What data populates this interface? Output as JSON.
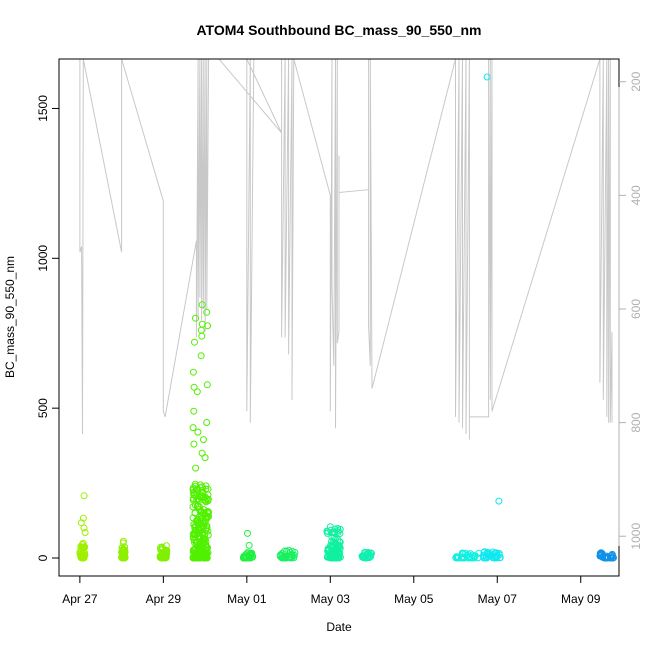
{
  "chart_data": {
    "type": "scatter",
    "title": "ATOM4 Southbound BC_mass_90_550_nm",
    "xlabel": "Date",
    "ylabel": "BC_mass_90_550_nm",
    "x_ticks": [
      "Apr 27",
      "Apr 29",
      "May 01",
      "May 03",
      "May 05",
      "May 07",
      "May 09"
    ],
    "x_tick_dates": [
      "2017-04-27",
      "2017-04-29",
      "2017-05-01",
      "2017-05-03",
      "2017-05-05",
      "2017-05-07",
      "2017-05-09"
    ],
    "xlim": [
      "2017-04-26T12:00",
      "2017-05-09T22:00"
    ],
    "y_ticks": [
      0,
      500,
      1000,
      1500
    ],
    "ylim": [
      -60,
      1665
    ],
    "y2_ticks": [
      200,
      400,
      600,
      800,
      1000
    ],
    "y2lim": [
      1070,
      160
    ],
    "y2_reversed": true,
    "grid": false,
    "series": [
      {
        "marker": "open-circle",
        "color_gradient": "time (green to cyan to blue)",
        "clusters": [
          {
            "x_start": "2017-04-27T00:00",
            "x_end": "2017-04-27T03:00",
            "y_min": 0,
            "y_max": 50,
            "color": "#9ef000",
            "outliers": [
              208,
              133,
              118,
              100,
              85
            ]
          },
          {
            "x_start": "2017-04-28T00:00",
            "x_end": "2017-04-28T02:00",
            "y_min": 0,
            "y_max": 60,
            "color": "#8ef000",
            "outliers": []
          },
          {
            "x_start": "2017-04-28T22:00",
            "x_end": "2017-04-29T02:00",
            "y_min": 0,
            "y_max": 43,
            "color": "#7ef000",
            "outliers": []
          },
          {
            "x_start": "2017-04-29T17:00",
            "x_end": "2017-04-30T02:00",
            "y_min": 0,
            "y_max": 250,
            "color": "#50f000",
            "outliers": [
              845,
              820,
              800,
              780,
              775,
              760,
              740,
              720,
              675,
              620,
              578,
              570,
              555,
              490,
              452,
              435,
              420,
              395,
              380,
              350,
              335,
              300
            ]
          },
          {
            "x_start": "2017-04-30T22:00",
            "x_end": "2017-05-01T04:00",
            "y_min": 0,
            "y_max": 20,
            "color": "#20f040",
            "outliers": [
              82,
              42
            ]
          },
          {
            "x_start": "2017-05-01T19:00",
            "x_end": "2017-05-02T04:00",
            "y_min": 0,
            "y_max": 27,
            "color": "#18f060",
            "outliers": []
          },
          {
            "x_start": "2017-05-02T22:00",
            "x_end": "2017-05-03T06:00",
            "y_min": 0,
            "y_max": 105,
            "color": "#10f0a0",
            "outliers": []
          },
          {
            "x_start": "2017-05-03T18:00",
            "x_end": "2017-05-04T00:00",
            "y_min": 0,
            "y_max": 20,
            "color": "#10f0b0",
            "outliers": []
          },
          {
            "x_start": "2017-05-06T00:00",
            "x_end": "2017-05-06T14:00",
            "y_min": 0,
            "y_max": 18,
            "color": "#10f0e0",
            "outliers": []
          },
          {
            "x_start": "2017-05-06T16:00",
            "x_end": "2017-05-07T02:00",
            "y_min": 0,
            "y_max": 25,
            "color": "#10e8f0",
            "outliers": [
              1605,
              190
            ]
          },
          {
            "x_start": "2017-05-09T11:00",
            "x_end": "2017-05-09T19:00",
            "y_min": 0,
            "y_max": 18,
            "color": "#1090e8",
            "outliers": []
          }
        ]
      },
      {
        "axis": "right",
        "line_color": "#c8c8c8",
        "points": [
          [
            "2017-04-27T00:00",
            160
          ],
          [
            "2017-04-27T00:00",
            500
          ],
          [
            "2017-04-27T01:00",
            490
          ],
          [
            "2017-04-27T01:30",
            820
          ],
          [
            "2017-04-27T02:00",
            160
          ],
          [
            "2017-04-28T00:00",
            500
          ],
          [
            "2017-04-28T00:00",
            160
          ],
          [
            "2017-04-29T00:00",
            410
          ],
          [
            "2017-04-29T00:00",
            780
          ],
          [
            "2017-04-29T01:00",
            790
          ],
          [
            "2017-04-29T19:00",
            480
          ],
          [
            "2017-04-29T19:00",
            650
          ],
          [
            "2017-04-29T20:00",
            160
          ],
          [
            "2017-04-29T20:00",
            620
          ],
          [
            "2017-04-29T21:00",
            160
          ],
          [
            "2017-04-29T21:00",
            580
          ],
          [
            "2017-04-29T22:00",
            160
          ],
          [
            "2017-04-29T22:00",
            620
          ],
          [
            "2017-04-29T23:00",
            160
          ],
          [
            "2017-04-29T23:00",
            600
          ],
          [
            "2017-04-30T00:00",
            160
          ],
          [
            "2017-04-30T00:00",
            640
          ],
          [
            "2017-04-30T01:00",
            160
          ],
          [
            "2017-04-30T01:00",
            600
          ],
          [
            "2017-04-30T02:00",
            160
          ],
          [
            "2017-04-30T08:00",
            160
          ],
          [
            "2017-05-01T20:00",
            290
          ],
          [
            "2017-05-01T00:00",
            160
          ],
          [
            "2017-05-01T00:00",
            780
          ],
          [
            "2017-05-01T02:00",
            160
          ],
          [
            "2017-05-01T02:00",
            800
          ],
          [
            "2017-05-01T04:00",
            160
          ],
          [
            "2017-05-01T20:00",
            160
          ],
          [
            "2017-05-01T20:00",
            650
          ],
          [
            "2017-05-01T22:00",
            160
          ],
          [
            "2017-05-01T22:00",
            650
          ],
          [
            "2017-05-02T00:00",
            160
          ],
          [
            "2017-05-02T00:00",
            680
          ],
          [
            "2017-05-02T02:00",
            160
          ],
          [
            "2017-05-02T02:00",
            760
          ],
          [
            "2017-05-02T03:00",
            160
          ],
          [
            "2017-05-03T00:00",
            400
          ],
          [
            "2017-05-03T00:00",
            780
          ],
          [
            "2017-05-03T01:00",
            160
          ],
          [
            "2017-05-03T01:00",
            560
          ],
          [
            "2017-05-03T02:00",
            700
          ],
          [
            "2017-05-03T03:00",
            160
          ],
          [
            "2017-05-03T03:00",
            810
          ],
          [
            "2017-05-03T04:00",
            160
          ],
          [
            "2017-05-03T04:00",
            660
          ],
          [
            "2017-05-03T05:00",
            640
          ],
          [
            "2017-05-03T05:00",
            330
          ],
          [
            "2017-05-03T05:00",
            395
          ],
          [
            "2017-05-03T22:00",
            390
          ],
          [
            "2017-05-03T22:00",
            160
          ],
          [
            "2017-05-03T22:00",
            630
          ],
          [
            "2017-05-03T23:00",
            700
          ],
          [
            "2017-05-03T23:00",
            160
          ],
          [
            "2017-05-04T00:00",
            740
          ],
          [
            "2017-05-06T00:00",
            160
          ],
          [
            "2017-05-06T00:00",
            790
          ],
          [
            "2017-05-06T02:00",
            160
          ],
          [
            "2017-05-06T02:00",
            800
          ],
          [
            "2017-05-06T04:00",
            160
          ],
          [
            "2017-05-06T04:00",
            810
          ],
          [
            "2017-05-06T06:00",
            160
          ],
          [
            "2017-05-06T06:00",
            820
          ],
          [
            "2017-05-06T08:00",
            160
          ],
          [
            "2017-05-06T08:00",
            830
          ],
          [
            "2017-05-06T08:00",
            790
          ],
          [
            "2017-05-06T19:00",
            790
          ],
          [
            "2017-05-06T19:00",
            160
          ],
          [
            "2017-05-06T19:00",
            730
          ],
          [
            "2017-05-06T20:00",
            160
          ],
          [
            "2017-05-06T20:00",
            760
          ],
          [
            "2017-05-06T21:00",
            160
          ],
          [
            "2017-05-06T21:00",
            780
          ],
          [
            "2017-05-09T11:00",
            160
          ],
          [
            "2017-05-09T11:00",
            730
          ],
          [
            "2017-05-09T13:00",
            160
          ],
          [
            "2017-05-09T13:00",
            760
          ],
          [
            "2017-05-09T15:00",
            160
          ],
          [
            "2017-05-09T15:00",
            790
          ],
          [
            "2017-05-09T16:00",
            160
          ],
          [
            "2017-05-09T16:00",
            800
          ],
          [
            "2017-05-09T17:00",
            160
          ],
          [
            "2017-05-09T17:00",
            800
          ],
          [
            "2017-05-09T18:00",
            640
          ],
          [
            "2017-05-09T18:00",
            800
          ]
        ]
      }
    ]
  }
}
